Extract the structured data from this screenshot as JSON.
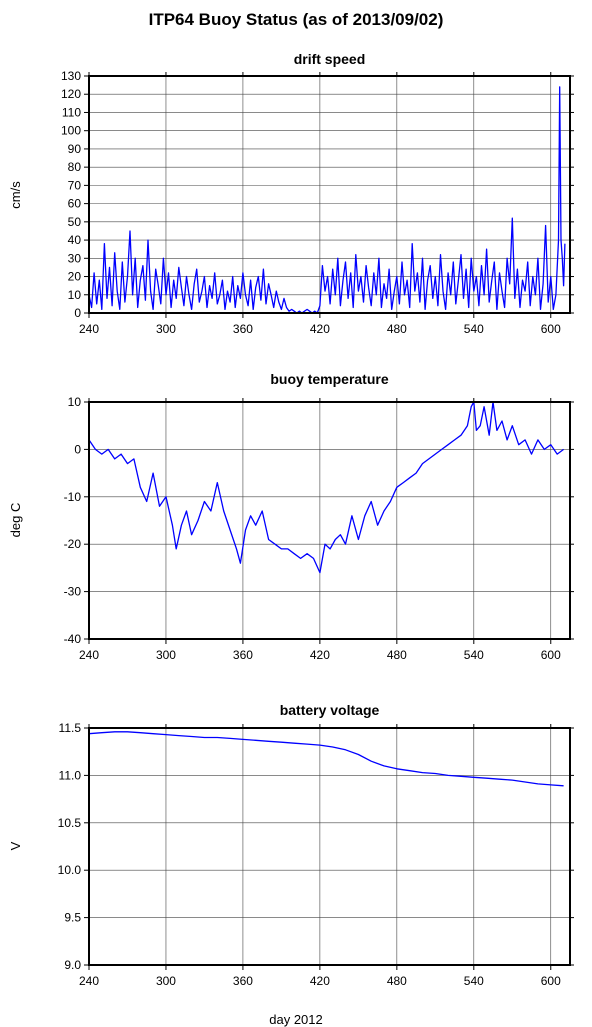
{
  "title": "ITP64 Buoy Status (as of 2013/09/02)",
  "xlabel": "day 2012",
  "line_color": "#0000ff",
  "chart_data": [
    {
      "type": "line",
      "title": "drift speed",
      "ylabel": "cm/s",
      "xlim": [
        240,
        615
      ],
      "ylim": [
        0,
        130
      ],
      "xticks": [
        240,
        300,
        360,
        420,
        480,
        540,
        600
      ],
      "yticks": [
        0,
        10,
        20,
        30,
        40,
        50,
        60,
        70,
        80,
        90,
        100,
        110,
        120,
        130
      ],
      "grid": true,
      "series": [
        {
          "x": [
            240,
            242,
            244,
            246,
            248,
            250,
            252,
            254,
            256,
            258,
            260,
            262,
            264,
            266,
            268,
            270,
            272,
            274,
            276,
            278,
            280,
            282,
            284,
            286,
            288,
            290,
            292,
            294,
            296,
            298,
            300,
            302,
            304,
            306,
            308,
            310,
            312,
            314,
            316,
            318,
            320,
            322,
            324,
            326,
            328,
            330,
            332,
            334,
            336,
            338,
            340,
            342,
            344,
            346,
            348,
            350,
            352,
            354,
            356,
            358,
            360,
            362,
            364,
            366,
            368,
            370,
            372,
            374,
            376,
            378,
            380,
            382,
            384,
            386,
            388,
            390,
            392,
            394,
            396,
            398,
            400,
            402,
            404,
            406,
            408,
            410,
            412,
            414,
            416,
            418,
            420,
            422,
            424,
            426,
            428,
            430,
            432,
            434,
            436,
            438,
            440,
            442,
            444,
            446,
            448,
            450,
            452,
            454,
            456,
            458,
            460,
            462,
            464,
            466,
            468,
            470,
            472,
            474,
            476,
            478,
            480,
            482,
            484,
            486,
            488,
            490,
            492,
            494,
            496,
            498,
            500,
            502,
            504,
            506,
            508,
            510,
            512,
            514,
            516,
            518,
            520,
            522,
            524,
            526,
            528,
            530,
            532,
            534,
            536,
            538,
            540,
            542,
            544,
            546,
            548,
            550,
            552,
            554,
            556,
            558,
            560,
            562,
            564,
            566,
            568,
            570,
            572,
            574,
            576,
            578,
            580,
            582,
            584,
            586,
            588,
            590,
            592,
            594,
            596,
            598,
            600,
            602,
            604,
            606,
            607,
            608,
            609,
            610,
            611
          ],
          "y": [
            10,
            3,
            22,
            5,
            18,
            2,
            38,
            8,
            25,
            4,
            33,
            12,
            2,
            28,
            6,
            20,
            45,
            10,
            30,
            3,
            18,
            26,
            7,
            40,
            12,
            2,
            24,
            15,
            5,
            30,
            10,
            22,
            3,
            18,
            8,
            25,
            14,
            4,
            20,
            10,
            2,
            16,
            24,
            6,
            12,
            20,
            3,
            15,
            8,
            22,
            5,
            10,
            18,
            2,
            12,
            6,
            20,
            3,
            15,
            8,
            22,
            10,
            4,
            18,
            2,
            14,
            20,
            7,
            24,
            5,
            16,
            10,
            3,
            12,
            6,
            2,
            8,
            3,
            1,
            2,
            1,
            0,
            1,
            0,
            1,
            2,
            1,
            0,
            1,
            0,
            4,
            26,
            12,
            20,
            5,
            24,
            10,
            30,
            4,
            18,
            28,
            8,
            22,
            3,
            32,
            12,
            20,
            6,
            26,
            14,
            4,
            22,
            10,
            30,
            3,
            16,
            8,
            24,
            2,
            12,
            20,
            5,
            28,
            10,
            18,
            3,
            38,
            12,
            22,
            6,
            30,
            2,
            18,
            26,
            8,
            20,
            4,
            32,
            12,
            2,
            22,
            10,
            28,
            5,
            18,
            32,
            8,
            24,
            3,
            30,
            12,
            20,
            4,
            26,
            10,
            35,
            6,
            18,
            28,
            2,
            22,
            12,
            3,
            30,
            16,
            52,
            8,
            24,
            3,
            18,
            12,
            28,
            4,
            20,
            10,
            30,
            2,
            16,
            48,
            6,
            20,
            2,
            10,
            40,
            124,
            40,
            30,
            15,
            38
          ]
        }
      ]
    },
    {
      "type": "line",
      "title": "buoy temperature",
      "ylabel": "deg C",
      "xlim": [
        240,
        615
      ],
      "ylim": [
        -40,
        10
      ],
      "xticks": [
        240,
        300,
        360,
        420,
        480,
        540,
        600
      ],
      "yticks": [
        -40,
        -30,
        -20,
        -10,
        0,
        10
      ],
      "grid": true,
      "series": [
        {
          "x": [
            240,
            245,
            250,
            255,
            260,
            265,
            270,
            275,
            280,
            285,
            290,
            295,
            300,
            305,
            308,
            312,
            316,
            320,
            325,
            330,
            335,
            340,
            345,
            350,
            355,
            358,
            362,
            366,
            370,
            375,
            380,
            385,
            390,
            395,
            400,
            405,
            410,
            415,
            420,
            424,
            428,
            432,
            436,
            440,
            445,
            450,
            455,
            460,
            465,
            470,
            475,
            480,
            485,
            490,
            495,
            500,
            505,
            510,
            515,
            520,
            525,
            530,
            535,
            538,
            540,
            542,
            545,
            548,
            552,
            555,
            558,
            562,
            566,
            570,
            575,
            580,
            585,
            590,
            595,
            600,
            605,
            610
          ],
          "y": [
            2,
            0,
            -1,
            0,
            -2,
            -1,
            -3,
            -2,
            -8,
            -11,
            -5,
            -12,
            -10,
            -16,
            -21,
            -16,
            -13,
            -18,
            -15,
            -11,
            -13,
            -7,
            -13,
            -17,
            -21,
            -24,
            -17,
            -14,
            -16,
            -13,
            -19,
            -20,
            -21,
            -21,
            -22,
            -23,
            -22,
            -23,
            -26,
            -20,
            -21,
            -19,
            -18,
            -20,
            -14,
            -19,
            -14,
            -11,
            -16,
            -13,
            -11,
            -8,
            -7,
            -6,
            -5,
            -3,
            -2,
            -1,
            0,
            1,
            2,
            3,
            5,
            9,
            10,
            4,
            5,
            9,
            3,
            10,
            4,
            6,
            2,
            5,
            1,
            2,
            -1,
            2,
            0,
            1,
            -1,
            0
          ]
        }
      ]
    },
    {
      "type": "line",
      "title": "battery voltage",
      "ylabel": "V",
      "xlim": [
        240,
        615
      ],
      "ylim": [
        9.0,
        11.5
      ],
      "xticks": [
        240,
        300,
        360,
        420,
        480,
        540,
        600
      ],
      "yticks": [
        9.0,
        9.5,
        10.0,
        10.5,
        11.0,
        11.5
      ],
      "yticklabels": [
        "9.0",
        "9.5",
        "10.0",
        "10.5",
        "11.0",
        "11.5"
      ],
      "grid": true,
      "series": [
        {
          "x": [
            240,
            250,
            260,
            270,
            280,
            290,
            300,
            310,
            320,
            330,
            340,
            350,
            360,
            370,
            380,
            390,
            400,
            410,
            420,
            430,
            440,
            450,
            460,
            470,
            480,
            490,
            500,
            510,
            520,
            530,
            540,
            550,
            560,
            570,
            580,
            590,
            600,
            610
          ],
          "y": [
            11.44,
            11.45,
            11.46,
            11.46,
            11.45,
            11.44,
            11.43,
            11.42,
            11.41,
            11.4,
            11.4,
            11.39,
            11.38,
            11.37,
            11.36,
            11.35,
            11.34,
            11.33,
            11.32,
            11.3,
            11.27,
            11.22,
            11.15,
            11.1,
            11.07,
            11.05,
            11.03,
            11.02,
            11.0,
            10.99,
            10.98,
            10.97,
            10.96,
            10.95,
            10.93,
            10.91,
            10.9,
            10.89
          ]
        }
      ]
    }
  ]
}
